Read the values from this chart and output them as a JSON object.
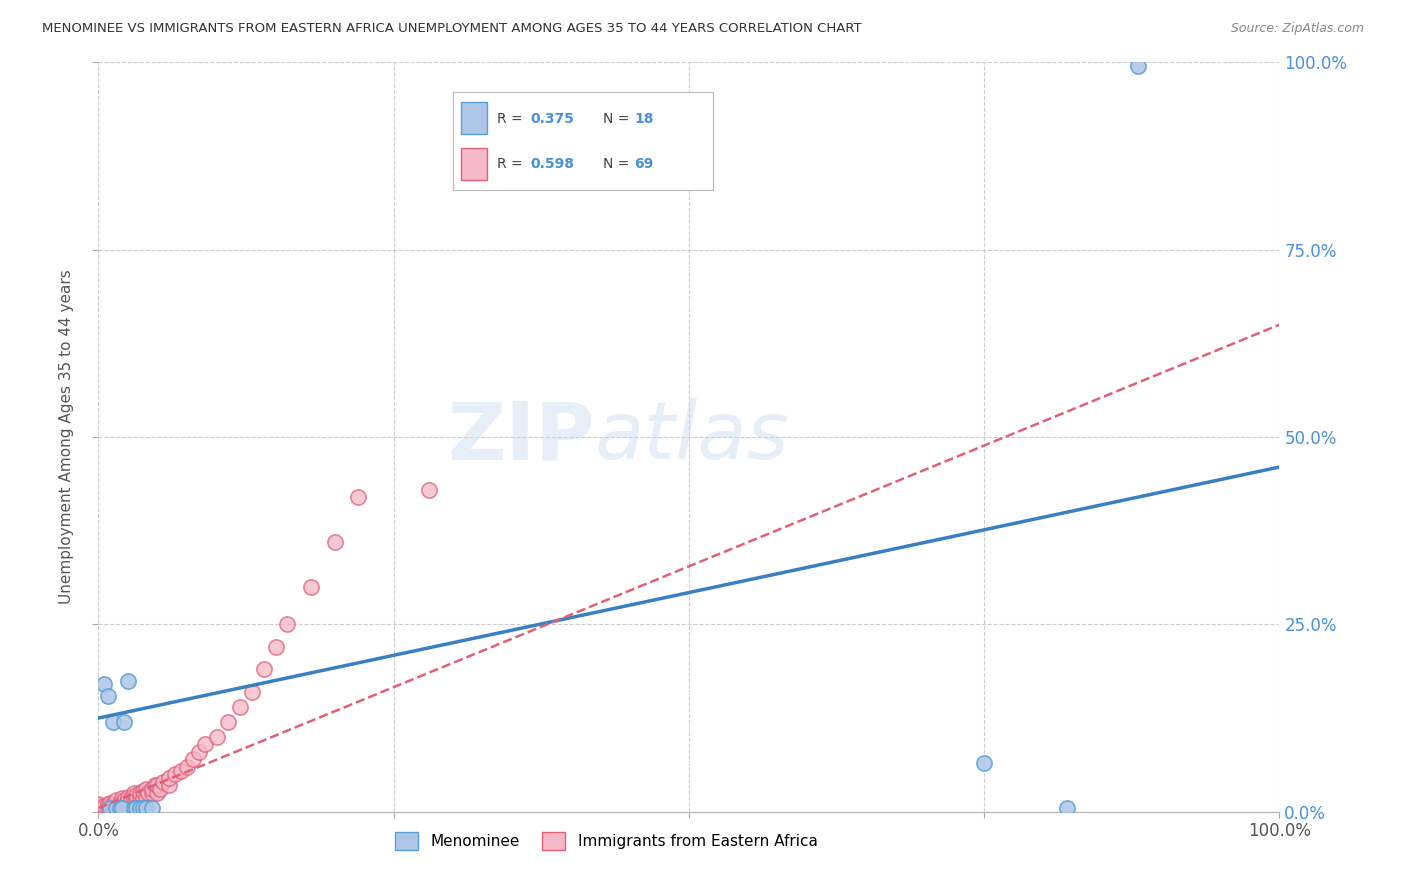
{
  "title": "MENOMINEE VS IMMIGRANTS FROM EASTERN AFRICA UNEMPLOYMENT AMONG AGES 35 TO 44 YEARS CORRELATION CHART",
  "source": "Source: ZipAtlas.com",
  "ylabel": "Unemployment Among Ages 35 to 44 years",
  "xlim": [
    0,
    1
  ],
  "ylim": [
    0,
    1
  ],
  "menominee_color": "#aec6e8",
  "menominee_edge_color": "#5a9fd4",
  "eastern_africa_color": "#f5b8c8",
  "eastern_africa_edge_color": "#e0607a",
  "menominee_line_color": "#3a7fc1",
  "eastern_africa_line_color": "#e07090",
  "R_menominee": 0.375,
  "N_menominee": 18,
  "R_eastern_africa": 0.598,
  "N_eastern_africa": 69,
  "watermark": "ZIPatlas",
  "background_color": "#ffffff",
  "grid_color": "#cccccc",
  "menominee_x": [
    0.005,
    0.008,
    0.01,
    0.012,
    0.015,
    0.018,
    0.02,
    0.022,
    0.025,
    0.03,
    0.032,
    0.035,
    0.038,
    0.04,
    0.045,
    0.75,
    0.82,
    0.88
  ],
  "menominee_y": [
    0.17,
    0.155,
    0.005,
    0.12,
    0.005,
    0.005,
    0.005,
    0.12,
    0.175,
    0.005,
    0.005,
    0.005,
    0.005,
    0.005,
    0.005,
    0.065,
    0.005,
    0.995
  ],
  "eastern_africa_x": [
    0.0,
    0.0,
    0.0,
    0.0,
    0.0,
    0.0,
    0.005,
    0.005,
    0.005,
    0.008,
    0.008,
    0.01,
    0.01,
    0.01,
    0.012,
    0.012,
    0.015,
    0.015,
    0.015,
    0.018,
    0.018,
    0.02,
    0.02,
    0.02,
    0.022,
    0.022,
    0.025,
    0.025,
    0.025,
    0.028,
    0.028,
    0.03,
    0.03,
    0.03,
    0.032,
    0.032,
    0.035,
    0.035,
    0.038,
    0.038,
    0.04,
    0.04,
    0.042,
    0.045,
    0.045,
    0.048,
    0.05,
    0.05,
    0.052,
    0.055,
    0.06,
    0.06,
    0.065,
    0.07,
    0.075,
    0.08,
    0.085,
    0.09,
    0.1,
    0.11,
    0.12,
    0.13,
    0.14,
    0.15,
    0.16,
    0.18,
    0.2,
    0.22,
    0.28
  ],
  "eastern_africa_y": [
    0.005,
    0.005,
    0.005,
    0.005,
    0.008,
    0.01,
    0.005,
    0.005,
    0.008,
    0.005,
    0.01,
    0.005,
    0.008,
    0.012,
    0.005,
    0.01,
    0.005,
    0.01,
    0.015,
    0.005,
    0.012,
    0.008,
    0.012,
    0.018,
    0.008,
    0.015,
    0.01,
    0.015,
    0.02,
    0.012,
    0.018,
    0.01,
    0.018,
    0.025,
    0.015,
    0.022,
    0.02,
    0.025,
    0.018,
    0.028,
    0.02,
    0.03,
    0.025,
    0.025,
    0.03,
    0.035,
    0.025,
    0.035,
    0.03,
    0.04,
    0.035,
    0.045,
    0.05,
    0.055,
    0.06,
    0.07,
    0.08,
    0.09,
    0.1,
    0.12,
    0.14,
    0.16,
    0.19,
    0.22,
    0.25,
    0.3,
    0.36,
    0.42,
    0.43
  ],
  "men_line_x0": 0.0,
  "men_line_y0": 0.125,
  "men_line_x1": 1.0,
  "men_line_y1": 0.46,
  "ea_line_x0": 0.0,
  "ea_line_y0": 0.005,
  "ea_line_x1": 1.0,
  "ea_line_y1": 0.65
}
